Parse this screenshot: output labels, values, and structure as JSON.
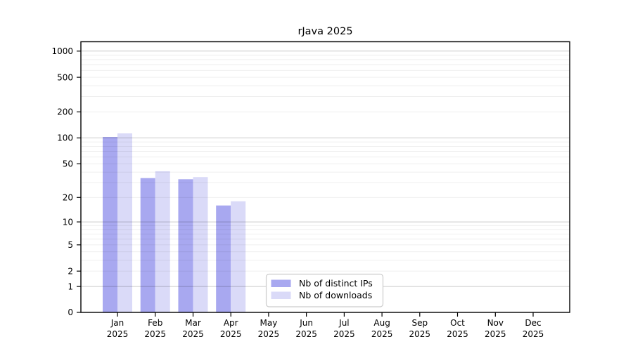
{
  "figure": {
    "title": "rJava 2025",
    "background": "#ffffff"
  },
  "chart_data": {
    "type": "bar",
    "title": "rJava 2025",
    "scale": "log1p",
    "grid": true,
    "categories": [
      "Jan",
      "Feb",
      "Mar",
      "Apr",
      "May",
      "Jun",
      "Jul",
      "Aug",
      "Sep",
      "Oct",
      "Nov",
      "Dec"
    ],
    "x_tick_second_line": "2025",
    "series": [
      {
        "name": "Nb of distinct IPs",
        "color": "#a8a8f0",
        "values": [
          103,
          34,
          33,
          16,
          0,
          0,
          0,
          0,
          0,
          0,
          0,
          0
        ]
      },
      {
        "name": "Nb of downloads",
        "color": "#dadaf8",
        "values": [
          113,
          41,
          35,
          18,
          0,
          0,
          0,
          0,
          0,
          0,
          0,
          0
        ]
      }
    ],
    "y_ticks": [
      0,
      1,
      2,
      5,
      10,
      20,
      50,
      100,
      200,
      500,
      1000
    ],
    "y_major_gridlines": [
      1,
      10,
      100,
      1000
    ],
    "y_minor_gridlines": [
      2,
      3,
      4,
      5,
      6,
      7,
      8,
      9,
      20,
      30,
      40,
      50,
      60,
      70,
      80,
      90,
      200,
      300,
      400,
      500,
      600,
      700,
      800,
      900
    ],
    "ylim": [
      0,
      1268
    ],
    "legend_position": "bottom-center-inside"
  },
  "colors": {
    "axis": "#000000",
    "major_grid": "#c9c9c9",
    "minor_grid": "#ececec",
    "legend_border": "#cccccc",
    "legend_background": "#ffffff"
  }
}
